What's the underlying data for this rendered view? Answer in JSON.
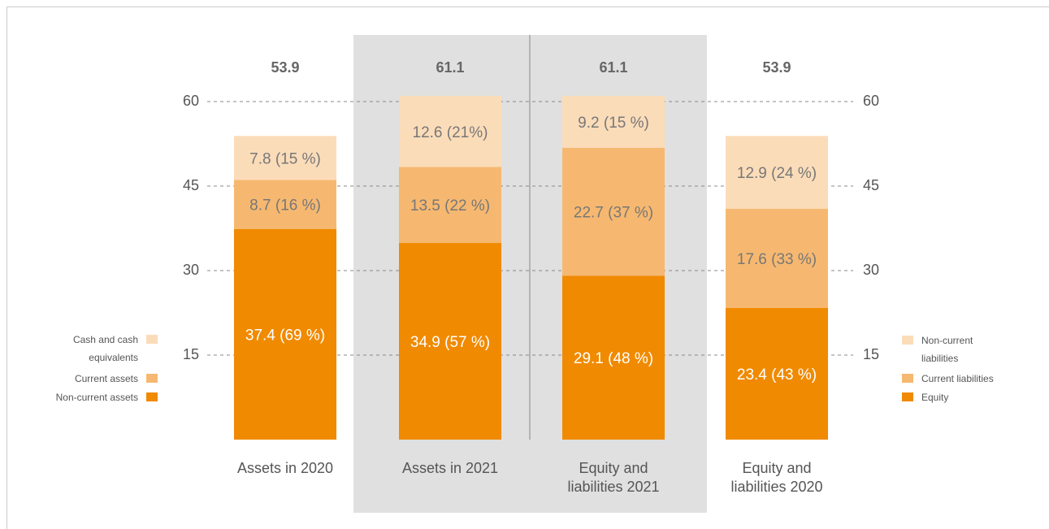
{
  "chart_data": {
    "type": "stacked-bar",
    "categories": [
      "Assets in 2020",
      "Assets in 2021",
      "Equity and liabilities 2021",
      "Equity and liabilities 2020"
    ],
    "totals": [
      53.9,
      61.1,
      61.1,
      53.9
    ],
    "series": [
      {
        "name": "Non-current assets",
        "color": "#f08a00",
        "values": [
          37.4,
          34.9,
          null,
          null
        ],
        "value_labels": [
          "37.4 (69 %)",
          "34.9 (57 %)",
          null,
          null
        ]
      },
      {
        "name": "Current assets",
        "color": "#f6b870",
        "values": [
          8.7,
          13.5,
          null,
          null
        ],
        "value_labels": [
          "8.7 (16 %)",
          "13.5 (22 %)",
          null,
          null
        ]
      },
      {
        "name": "Cash and cash equivalents",
        "color": "#fbdcb9",
        "values": [
          7.8,
          12.6,
          null,
          null
        ],
        "value_labels": [
          "7.8 (15 %)",
          "12.6 (21%)",
          null,
          null
        ]
      },
      {
        "name": "Equity",
        "color": "#f08a00",
        "values": [
          null,
          null,
          29.1,
          23.4
        ],
        "value_labels": [
          null,
          null,
          "29.1 (48 %)",
          "23.4 (43 %)"
        ]
      },
      {
        "name": "Current liabilities",
        "color": "#f6b870",
        "values": [
          null,
          null,
          22.7,
          17.6
        ],
        "value_labels": [
          null,
          null,
          "22.7 (37 %)",
          "17.6 (33 %)"
        ]
      },
      {
        "name": "Non-current liabilities",
        "color": "#fbdcb9",
        "values": [
          null,
          null,
          9.2,
          12.9
        ],
        "value_labels": [
          null,
          null,
          "9.2 (15 %)",
          "12.9 (24 %)"
        ]
      }
    ],
    "ylim": [
      0,
      60
    ],
    "yticks": [
      15,
      30,
      45,
      60
    ],
    "grid": true
  }
}
